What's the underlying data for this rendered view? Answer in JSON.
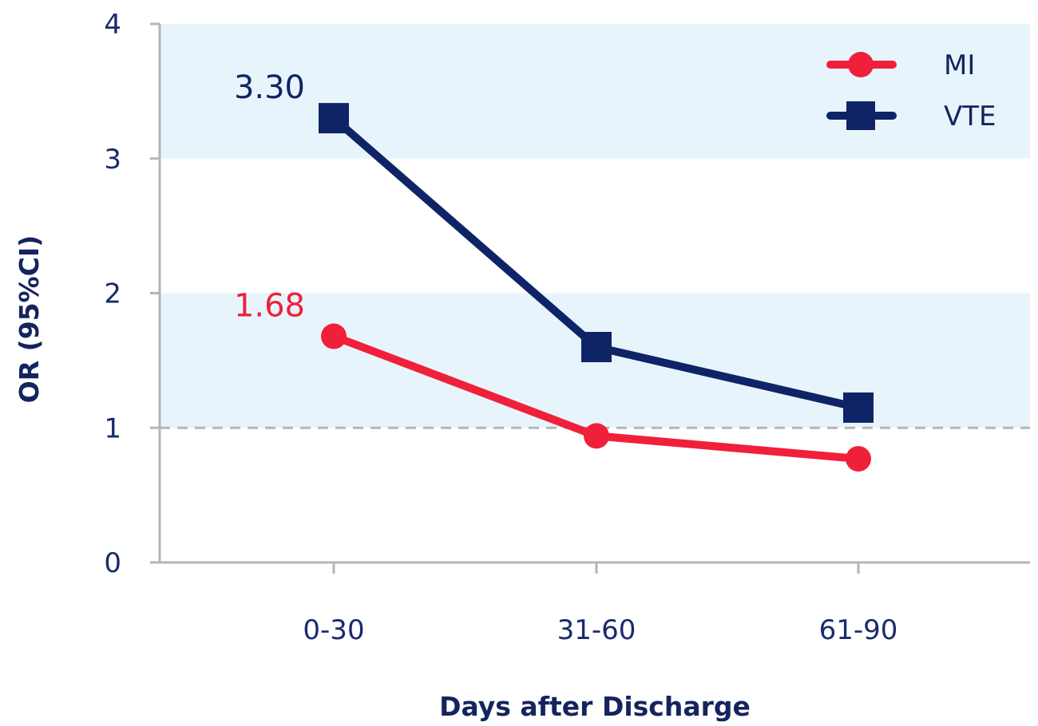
{
  "chart_data": {
    "type": "line",
    "categories": [
      "0-30",
      "31-60",
      "61-90"
    ],
    "series": [
      {
        "name": "MI",
        "values": [
          1.68,
          0.94,
          0.77
        ],
        "color": "#f0203a",
        "marker": "circle"
      },
      {
        "name": "VTE",
        "values": [
          3.3,
          1.6,
          1.15
        ],
        "color": "#0f2466",
        "marker": "square"
      }
    ],
    "annotations": [
      {
        "series": "VTE",
        "category": "0-30",
        "text": "3.30",
        "color": "#0f2466"
      },
      {
        "series": "MI",
        "category": "0-30",
        "text": "1.68",
        "color": "#f0203a"
      }
    ],
    "shaded_bands": [
      {
        "from": 3,
        "to": 4,
        "color": "#e8f4fb"
      },
      {
        "from": 1,
        "to": 2,
        "color": "#e8f4fb"
      }
    ],
    "reference_line": {
      "value": 1,
      "style": "dashed",
      "color": "#b5b5b5"
    },
    "yticks": [
      "0",
      "1",
      "2",
      "3",
      "4"
    ],
    "ylim": [
      0,
      4
    ],
    "xlabel": "Days after Discharge",
    "ylabel": "OR (95%CI)",
    "legend_position": "top-right",
    "grid": false
  }
}
